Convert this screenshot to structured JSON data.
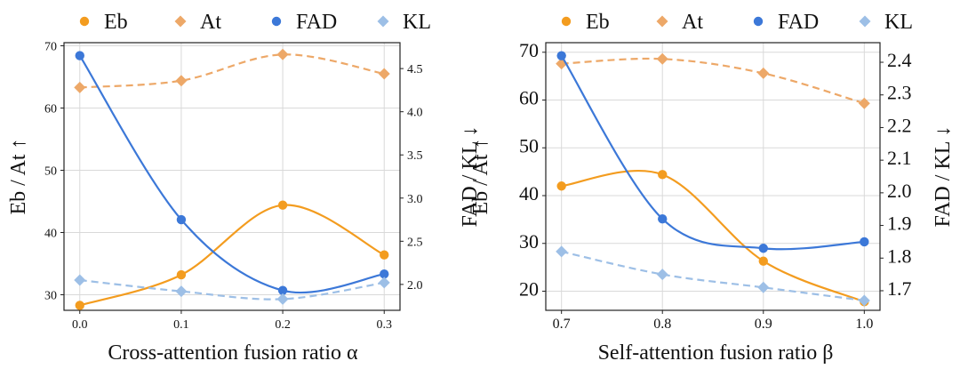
{
  "colors": {
    "eb": "#f39c1f",
    "at": "#eda868",
    "fad": "#3c78d8",
    "kl": "#9dbfe6"
  },
  "chart_data": [
    {
      "type": "line",
      "title": "",
      "xlabel": "Cross-attention fusion ratio α",
      "ylabel_left": "Eb / At ↑",
      "ylabel_right": "FAD / KL ↓",
      "x": [
        0.0,
        0.1,
        0.2,
        0.3
      ],
      "x_tick_labels": [
        "0.0",
        "0.1",
        "0.2",
        "0.3"
      ],
      "ylim_left": [
        27.5,
        70.5
      ],
      "ylim_right": [
        1.7,
        4.8
      ],
      "y_ticks_left": [
        30,
        40,
        50,
        60,
        70
      ],
      "y_ticks_right": [
        "2.0",
        "2.5",
        "3.0",
        "3.5",
        "4.0",
        "4.5"
      ],
      "legend": [
        "Eb",
        "At",
        "FAD",
        "KL"
      ],
      "legend_position": "top",
      "grid": true,
      "series": [
        {
          "name": "Eb",
          "axis": "left",
          "marker": "circle",
          "style": "solid",
          "values": [
            28.3,
            33.2,
            44.4,
            36.4
          ]
        },
        {
          "name": "At",
          "axis": "left",
          "marker": "diamond",
          "style": "dashed",
          "values": [
            63.3,
            64.4,
            68.6,
            65.5
          ]
        },
        {
          "name": "FAD",
          "axis": "right",
          "marker": "circle",
          "style": "solid",
          "values": [
            4.65,
            2.75,
            1.93,
            2.12
          ]
        },
        {
          "name": "KL",
          "axis": "right",
          "marker": "diamond",
          "style": "dashed",
          "values": [
            2.05,
            1.92,
            1.83,
            2.02
          ]
        }
      ]
    },
    {
      "type": "line",
      "title": "",
      "xlabel": "Self-attention fusion ratio β",
      "ylabel_left": "Eb / At ↑",
      "ylabel_right": "FAD / KL ↓",
      "x": [
        0.7,
        0.8,
        0.9,
        1.0
      ],
      "x_tick_labels": [
        "0.7",
        "0.8",
        "0.9",
        "1.0"
      ],
      "ylim_left": [
        16,
        72
      ],
      "ylim_right": [
        1.64,
        2.46
      ],
      "y_ticks_left": [
        20,
        30,
        40,
        50,
        60,
        70
      ],
      "y_ticks_right": [
        "1.7",
        "1.8",
        "1.9",
        "2.0",
        "2.1",
        "2.2",
        "2.3",
        "2.4"
      ],
      "legend": [
        "Eb",
        "At",
        "FAD",
        "KL"
      ],
      "legend_position": "top",
      "grid": true,
      "series": [
        {
          "name": "Eb",
          "axis": "left",
          "marker": "circle",
          "style": "solid",
          "values": [
            42.0,
            44.4,
            26.3,
            17.8
          ]
        },
        {
          "name": "At",
          "axis": "left",
          "marker": "diamond",
          "style": "dashed",
          "values": [
            67.6,
            68.6,
            65.6,
            59.3
          ]
        },
        {
          "name": "FAD",
          "axis": "right",
          "marker": "circle",
          "style": "solid",
          "values": [
            2.42,
            1.92,
            1.83,
            1.85
          ]
        },
        {
          "name": "KL",
          "axis": "right",
          "marker": "diamond",
          "style": "dashed",
          "values": [
            1.82,
            1.75,
            1.71,
            1.67
          ]
        }
      ]
    }
  ]
}
